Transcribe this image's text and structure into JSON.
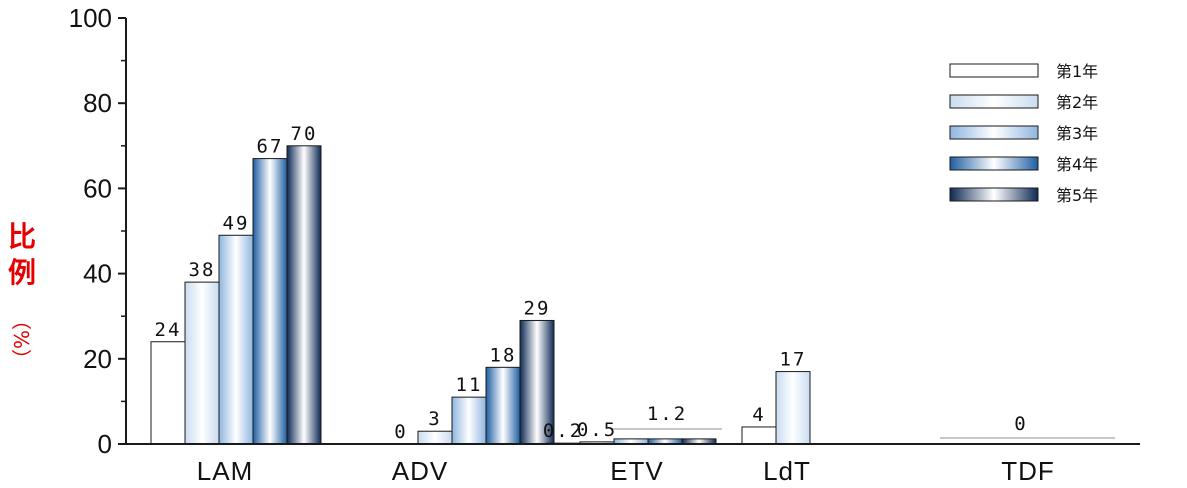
{
  "chart_data": {
    "type": "bar",
    "categories": [
      "LAM",
      "ADV",
      "ETV",
      "LdT",
      "TDF"
    ],
    "series": [
      {
        "name": "第1年",
        "values": [
          24,
          0,
          0.2,
          4,
          0
        ],
        "labels": [
          "24",
          "0",
          "0.2",
          "4",
          ""
        ]
      },
      {
        "name": "第2年",
        "values": [
          38,
          3,
          0.5,
          17,
          null
        ],
        "labels": [
          "38",
          "3",
          "0.5",
          "17",
          ""
        ]
      },
      {
        "name": "第3年",
        "values": [
          49,
          11,
          1.2,
          null,
          null
        ],
        "labels": [
          "49",
          "11",
          "",
          "",
          ""
        ]
      },
      {
        "name": "第4年",
        "values": [
          67,
          18,
          1.2,
          null,
          null
        ],
        "labels": [
          "67",
          "18",
          "",
          "",
          ""
        ]
      },
      {
        "name": "第5年",
        "values": [
          70,
          29,
          1.2,
          null,
          null
        ],
        "labels": [
          "70",
          "29",
          "",
          "",
          ""
        ]
      }
    ],
    "group_labels": {
      "ETV": "1.2",
      "TDF": "0"
    },
    "ylabel": "比例",
    "ylabel_unit": "（%）",
    "ylim": [
      0,
      100
    ],
    "yticks": [
      0,
      20,
      40,
      60,
      80,
      100
    ],
    "legend_position": "top-right",
    "colors": {
      "axis": "#1a1a1a",
      "ylabel": "#e60000",
      "series_gradients": [
        [
          "#ffffff",
          "#ffffff",
          "#ffffff"
        ],
        [
          "#c9dcf0",
          "#ffffff",
          "#c9dcf0"
        ],
        [
          "#8fb6e0",
          "#ffffff",
          "#8fb6e0"
        ],
        [
          "#1f5fa3",
          "#ffffff",
          "#1f5fa3"
        ],
        [
          "#0e2a55",
          "#ffffff",
          "#0e2a55"
        ]
      ]
    }
  }
}
